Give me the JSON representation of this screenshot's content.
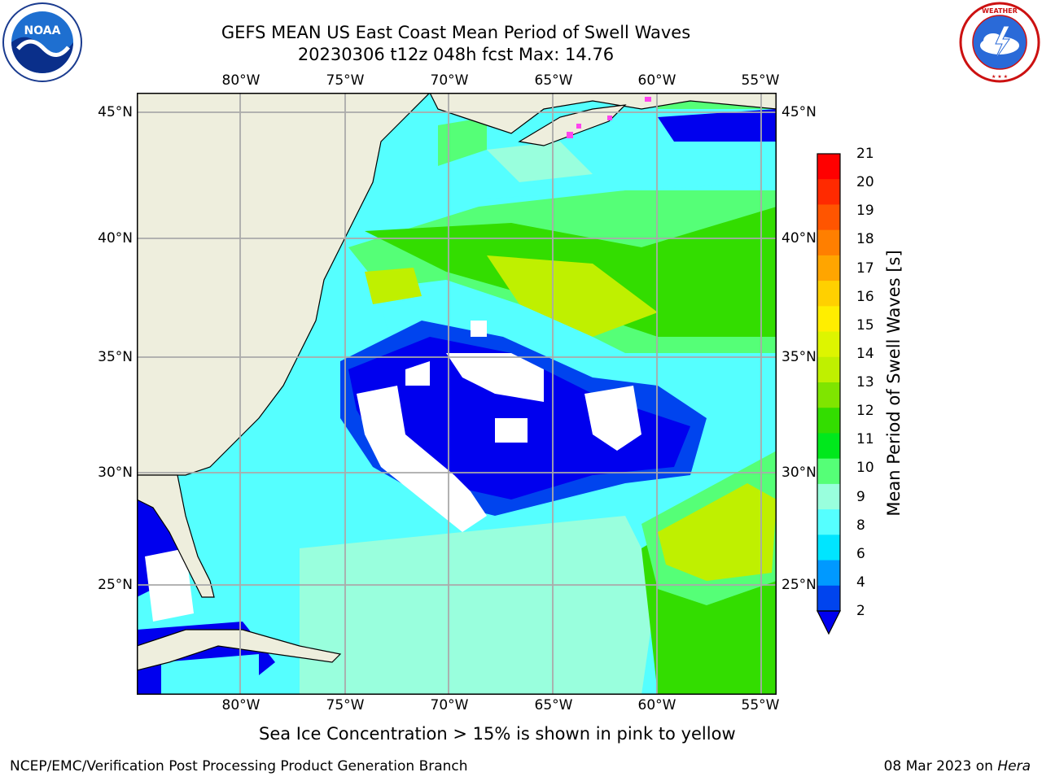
{
  "title_line1": "GEFS MEAN US East Coast Mean Period of Swell Waves",
  "title_line2": "20230306 t12z 048h fcst   Max: 14.76",
  "logos": {
    "left": "NOAA",
    "right": "NATIONAL WEATHER SERVICE"
  },
  "lon_ticks": [
    "80°W",
    "75°W",
    "70°W",
    "65°W",
    "60°W",
    "55°W"
  ],
  "lat_ticks": [
    "45°N",
    "40°N",
    "35°N",
    "30°N",
    "25°N"
  ],
  "colorbar": {
    "label": "Mean Period of Swell Waves [s]",
    "ticks": [
      "21",
      "20",
      "19",
      "18",
      "17",
      "16",
      "15",
      "14",
      "13",
      "12",
      "11",
      "10",
      "9",
      "8",
      "6",
      "4",
      "2"
    ],
    "colors_top_to_bottom": [
      "#ff0000",
      "#ff2a00",
      "#ff5500",
      "#ff7f00",
      "#ffa500",
      "#ffd000",
      "#ffee00",
      "#ddf500",
      "#bff000",
      "#7fe500",
      "#33dd00",
      "#00e81c",
      "#55ff77",
      "#99ffdd",
      "#55ffff",
      "#00e5ff",
      "#0099ff",
      "#0044ee"
    ],
    "extend_color": "#0000ee"
  },
  "note": "Sea Ice Concentration > 15% is shown in pink to yellow",
  "footer_left": "NCEP/EMC/Verification Post Processing Product Generation Branch",
  "footer_date": "08 Mar 2023 on",
  "footer_machine": "Hera"
}
